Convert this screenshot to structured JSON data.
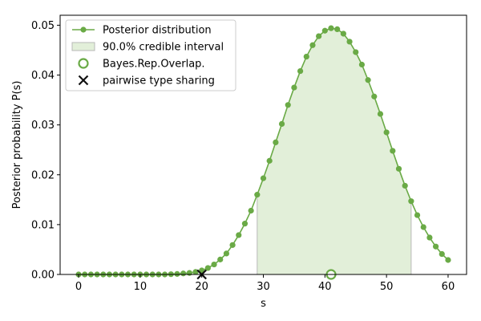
{
  "chart_data": {
    "type": "line",
    "xlabel": "s",
    "ylabel": "Posterior probability P(s)",
    "xlim": [
      -3,
      63
    ],
    "ylim": [
      0,
      0.052
    ],
    "xticks": [
      0,
      10,
      20,
      30,
      40,
      50,
      60
    ],
    "yticks": [
      0.0,
      0.01,
      0.02,
      0.03,
      0.04,
      0.05
    ],
    "ytick_labels": [
      "0.00",
      "0.01",
      "0.02",
      "0.03",
      "0.04",
      "0.05"
    ],
    "grid": false,
    "legend_position": "top-left",
    "series": [
      {
        "name": "Posterior distribution",
        "color": "#6aaa46",
        "x": [
          0,
          1,
          2,
          3,
          4,
          5,
          6,
          7,
          8,
          9,
          10,
          11,
          12,
          13,
          14,
          15,
          16,
          17,
          18,
          19,
          20,
          21,
          22,
          23,
          24,
          25,
          26,
          27,
          28,
          29,
          30,
          31,
          32,
          33,
          34,
          35,
          36,
          37,
          38,
          39,
          40,
          41,
          42,
          43,
          44,
          45,
          46,
          47,
          48,
          49,
          50,
          51,
          52,
          53,
          54,
          55,
          56,
          57,
          58,
          59,
          60
        ],
        "y": [
          0,
          0,
          0,
          0,
          0,
          0,
          0,
          0,
          0,
          0,
          0,
          0,
          0,
          0,
          0,
          5e-05,
          0.0001,
          0.0002,
          0.0003,
          0.0005,
          0.0008,
          0.0013,
          0.002,
          0.003,
          0.0042,
          0.0059,
          0.0079,
          0.0102,
          0.0128,
          0.016,
          0.0193,
          0.0228,
          0.0265,
          0.0302,
          0.034,
          0.0375,
          0.0408,
          0.0437,
          0.046,
          0.0478,
          0.0489,
          0.0494,
          0.0492,
          0.0483,
          0.0467,
          0.0446,
          0.0421,
          0.039,
          0.0357,
          0.0322,
          0.0285,
          0.0248,
          0.0212,
          0.0178,
          0.0147,
          0.0119,
          0.0095,
          0.0074,
          0.0056,
          0.0041,
          0.0029
        ]
      }
    ],
    "credible_interval": {
      "name": "90.0% credible interval",
      "x_start": 29,
      "x_end": 54,
      "fill": "#e2efd9",
      "edge": "#b8b8b8"
    },
    "markers": [
      {
        "name": "Bayes.Rep.Overlap.",
        "x": 41,
        "y": 0,
        "symbol": "circle",
        "color": "#6aaa46"
      },
      {
        "name": "pairwise type sharing",
        "x": 20,
        "y": 0,
        "symbol": "x",
        "color": "#111111"
      }
    ]
  }
}
